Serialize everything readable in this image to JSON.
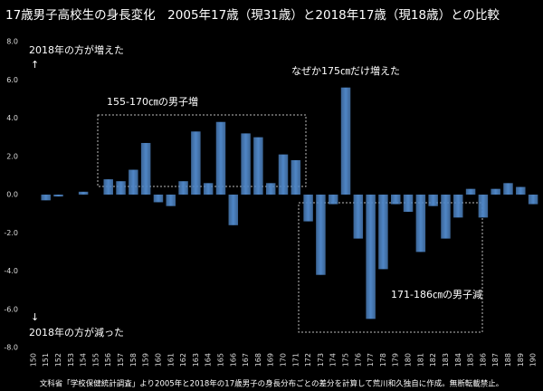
{
  "chart_data": {
    "type": "bar",
    "title": "17歳男子高校生の身長変化　2005年17歳（現31歳）と2018年17歳（現18歳）との比較",
    "categories": [
      "150",
      "151",
      "152",
      "153",
      "154",
      "155",
      "156",
      "157",
      "158",
      "159",
      "160",
      "161",
      "162",
      "163",
      "164",
      "165",
      "166",
      "167",
      "168",
      "169",
      "170",
      "171",
      "172",
      "173",
      "174",
      "175",
      "176",
      "177",
      "178",
      "179",
      "180",
      "181",
      "182",
      "183",
      "184",
      "185",
      "186",
      "187",
      "188",
      "189",
      "190"
    ],
    "values": [
      0,
      -0.3,
      -0.1,
      0,
      0.15,
      0,
      0.8,
      0.7,
      1.3,
      2.7,
      -0.4,
      -0.6,
      0.7,
      3.3,
      0.6,
      3.8,
      -1.6,
      3.2,
      3.0,
      0.6,
      2.1,
      1.8,
      -1.4,
      -4.2,
      -0.5,
      5.6,
      -2.3,
      -6.5,
      -3.9,
      -0.5,
      -0.9,
      -3.0,
      -0.6,
      -2.3,
      -1.2,
      0.3,
      -1.2,
      0.3,
      0.6,
      0.4,
      -0.5
    ],
    "color": "#4f86c6",
    "ylim": [
      -8,
      8
    ],
    "yticks": [
      {
        "value": -8,
        "label": "-8.0"
      },
      {
        "value": -6,
        "label": "-6.0"
      },
      {
        "value": -4,
        "label": "-4.0"
      },
      {
        "value": -2,
        "label": "-2.0"
      },
      {
        "value": 0,
        "label": "0.0"
      },
      {
        "value": 2,
        "label": "2.0"
      },
      {
        "value": 4,
        "label": "4.0"
      },
      {
        "value": 6,
        "label": "6.0"
      },
      {
        "value": 8,
        "label": "8.0"
      }
    ],
    "grid": false,
    "annotations": [
      "2018年の方が増えた",
      "↑",
      "なぜか175㎝だけ増えた",
      "155-170㎝の男子増",
      "171-186㎝の男子減",
      "↓",
      "2018年の方が減った"
    ],
    "footnote": "文科省「学校保健統計調査」より2005年と2018年の17歳男子の身長分布ごとの差分を計算して荒川和久独自に作成。無断転載禁止。"
  }
}
